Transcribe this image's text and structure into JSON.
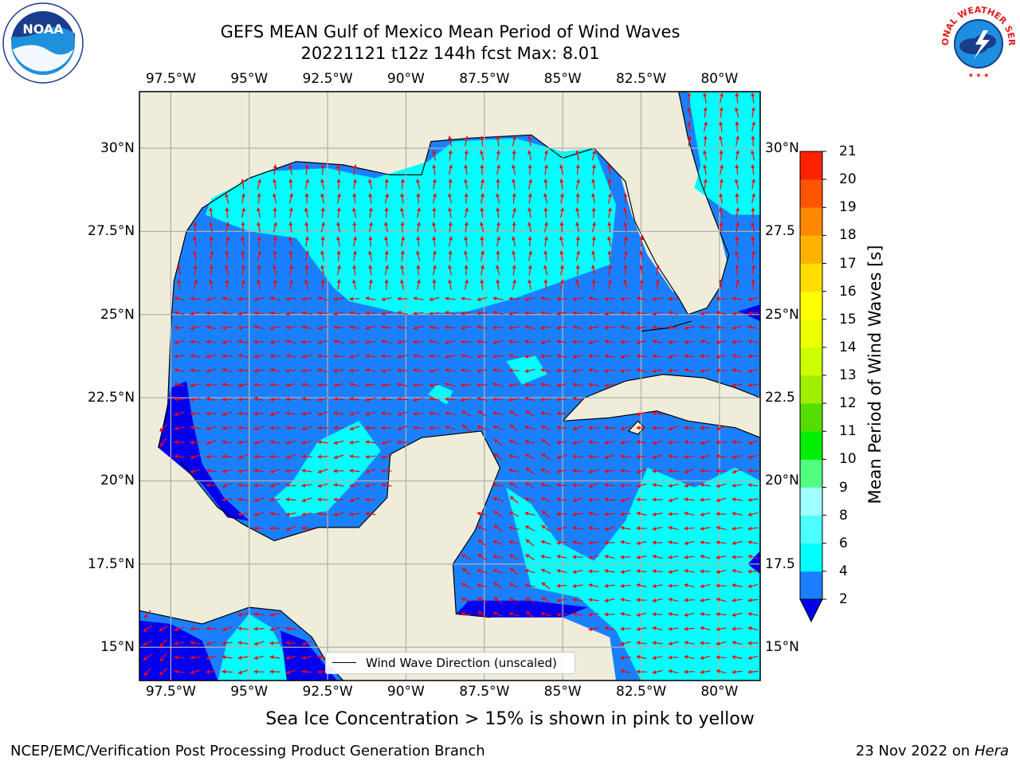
{
  "title": {
    "line1": "GEFS MEAN Gulf of Mexico Mean Period of Wind Waves",
    "line2": "20221121 t12z 144h fcst   Max: 8.01"
  },
  "map": {
    "lon_min": -98.5,
    "lon_max": -78.7,
    "lat_min": 14,
    "lat_max": 31.7,
    "lon_ticks": [
      "97.5°W",
      "95°W",
      "92.5°W",
      "90°W",
      "87.5°W",
      "85°W",
      "82.5°W",
      "80°W"
    ],
    "lon_values": [
      -97.5,
      -95,
      -92.5,
      -90,
      -87.5,
      -85,
      -82.5,
      -80
    ],
    "lat_ticks": [
      "15°N",
      "17.5°N",
      "20°N",
      "22.5°N",
      "25°N",
      "27.5°N",
      "30°N"
    ],
    "lat_values": [
      15,
      17.5,
      20,
      22.5,
      25,
      27.5,
      30
    ],
    "right_lat_ticks": [
      "15°N",
      "17.5",
      "20°N",
      "22.5",
      "25°N",
      "27.5",
      "30°N"
    ],
    "colors": {
      "land": "#efedda",
      "ocean_2_4": "#1b80ff",
      "ocean_4_6": "#00ffff",
      "ocean_below_2": "#0000ee",
      "arrow": "#ff0000",
      "grid": "#b0b0b0"
    }
  },
  "colorbar": {
    "label": "Mean Period of Wind Waves [s]",
    "tick_labels": [
      "2",
      "4",
      "6",
      "8",
      "9",
      "10",
      "11",
      "12",
      "13",
      "14",
      "15",
      "16",
      "17",
      "18",
      "19",
      "20",
      "21"
    ],
    "colors": [
      "#1b80ff",
      "#00ffff",
      "#4dffff",
      "#a0ffff",
      "#50ff80",
      "#00ee00",
      "#55dd00",
      "#a0ee00",
      "#ccff00",
      "#eeff00",
      "#ffff00",
      "#ffdd00",
      "#ffb300",
      "#ff8800",
      "#ff5500",
      "#ff2200"
    ],
    "under_color": "#0000ee"
  },
  "legend": {
    "label": "Wind Wave Direction (unscaled)"
  },
  "caption": "Sea Ice Concentration > 15% is shown in pink to yellow",
  "credit": "NCEP/EMC/Verification Post Processing Product Generation Branch",
  "date": {
    "text": "23 Nov 2022 on",
    "host": "Hera"
  },
  "logos": {
    "noaa_text": "NOAA",
    "nws_text": "NATIONAL WEATHER SERVICE"
  }
}
